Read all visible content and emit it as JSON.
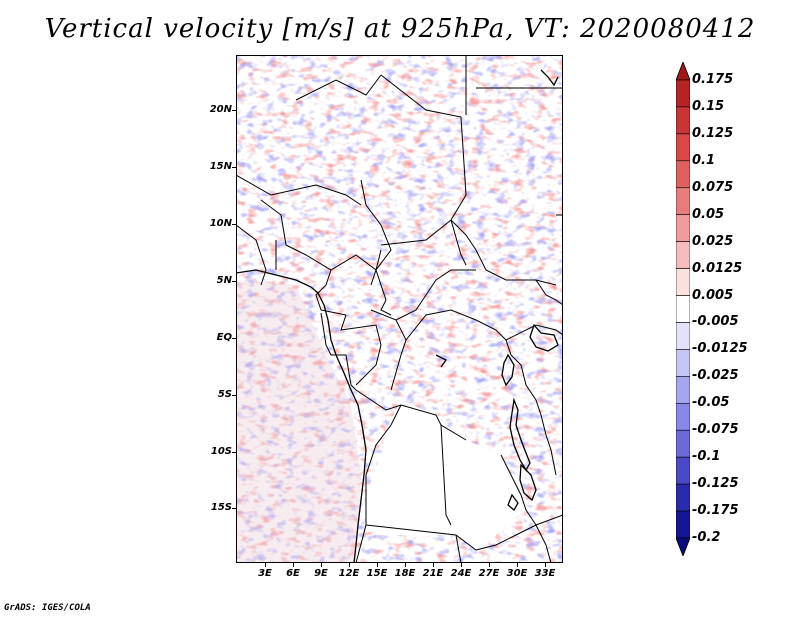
{
  "title": "Vertical velocity [m/s] at 925hPa, VT: 2020080412",
  "credit": "GrADS: IGES/COLA",
  "lat_labels": [
    "20N",
    "15N",
    "10N",
    "5N",
    "EQ",
    "5S",
    "10S",
    "15S"
  ],
  "lon_labels": [
    "3E",
    "6E",
    "9E",
    "12E",
    "15E",
    "18E",
    "21E",
    "24E",
    "27E",
    "30E",
    "33E"
  ],
  "colorbar": {
    "labels": [
      "0.175",
      "0.15",
      "0.125",
      "0.1",
      "0.075",
      "0.05",
      "0.025",
      "0.0125",
      "0.005",
      "-0.005",
      "-0.0125",
      "-0.025",
      "-0.05",
      "-0.075",
      "-0.1",
      "-0.125",
      "-0.175",
      "-0.2"
    ],
    "colors": [
      "#9e1a1a",
      "#b52424",
      "#c93434",
      "#d84646",
      "#e06060",
      "#e67e7e",
      "#ee9c9c",
      "#f5bcbc",
      "#fbe0e0",
      "#ffffff",
      "#e2e2fb",
      "#c6c6f5",
      "#a6a6ee",
      "#8888e6",
      "#6a6ad8",
      "#4a4ac6",
      "#2a2aae",
      "#141494",
      "#0c0c7c"
    ]
  }
}
